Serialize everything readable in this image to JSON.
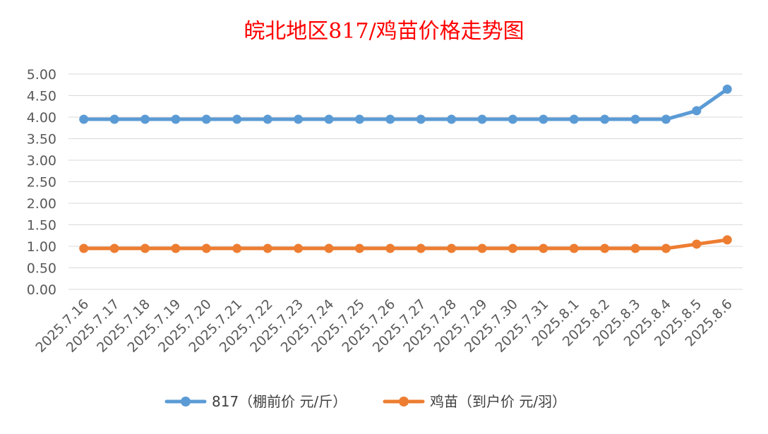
{
  "chart_data": {
    "type": "line",
    "title": "皖北地区817/鸡苗价格走势图",
    "categories": [
      "2025.7.16",
      "2025.7.17",
      "2025.7.18",
      "2025.7.19",
      "2025.7.20",
      "2025.7.21",
      "2025.7.22",
      "2025.7.23",
      "2025.7.24",
      "2025.7.25",
      "2025.7.26",
      "2025.7.27",
      "2025.7.28",
      "2025.7.29",
      "2025.7.30",
      "2025.7.31",
      "2025.8.1",
      "2025.8.2",
      "2025.8.3",
      "2025.8.4",
      "2025.8.5",
      "2025.8.6"
    ],
    "y_ticks": [
      "0.00",
      "0.50",
      "1.00",
      "1.50",
      "2.00",
      "2.50",
      "3.00",
      "3.50",
      "4.00",
      "4.50",
      "5.00"
    ],
    "ylim": [
      0,
      5
    ],
    "grid": "horizontal",
    "legend_position": "bottom",
    "series": [
      {
        "name": "817（棚前价 元/斤）",
        "color": "#5b9bd5",
        "values": [
          3.95,
          3.95,
          3.95,
          3.95,
          3.95,
          3.95,
          3.95,
          3.95,
          3.95,
          3.95,
          3.95,
          3.95,
          3.95,
          3.95,
          3.95,
          3.95,
          3.95,
          3.95,
          3.95,
          3.95,
          4.15,
          4.65
        ]
      },
      {
        "name": "鸡苗（到户价 元/羽）",
        "color": "#ed7d31",
        "values": [
          0.95,
          0.95,
          0.95,
          0.95,
          0.95,
          0.95,
          0.95,
          0.95,
          0.95,
          0.95,
          0.95,
          0.95,
          0.95,
          0.95,
          0.95,
          0.95,
          0.95,
          0.95,
          0.95,
          0.95,
          1.05,
          1.15
        ]
      }
    ]
  }
}
